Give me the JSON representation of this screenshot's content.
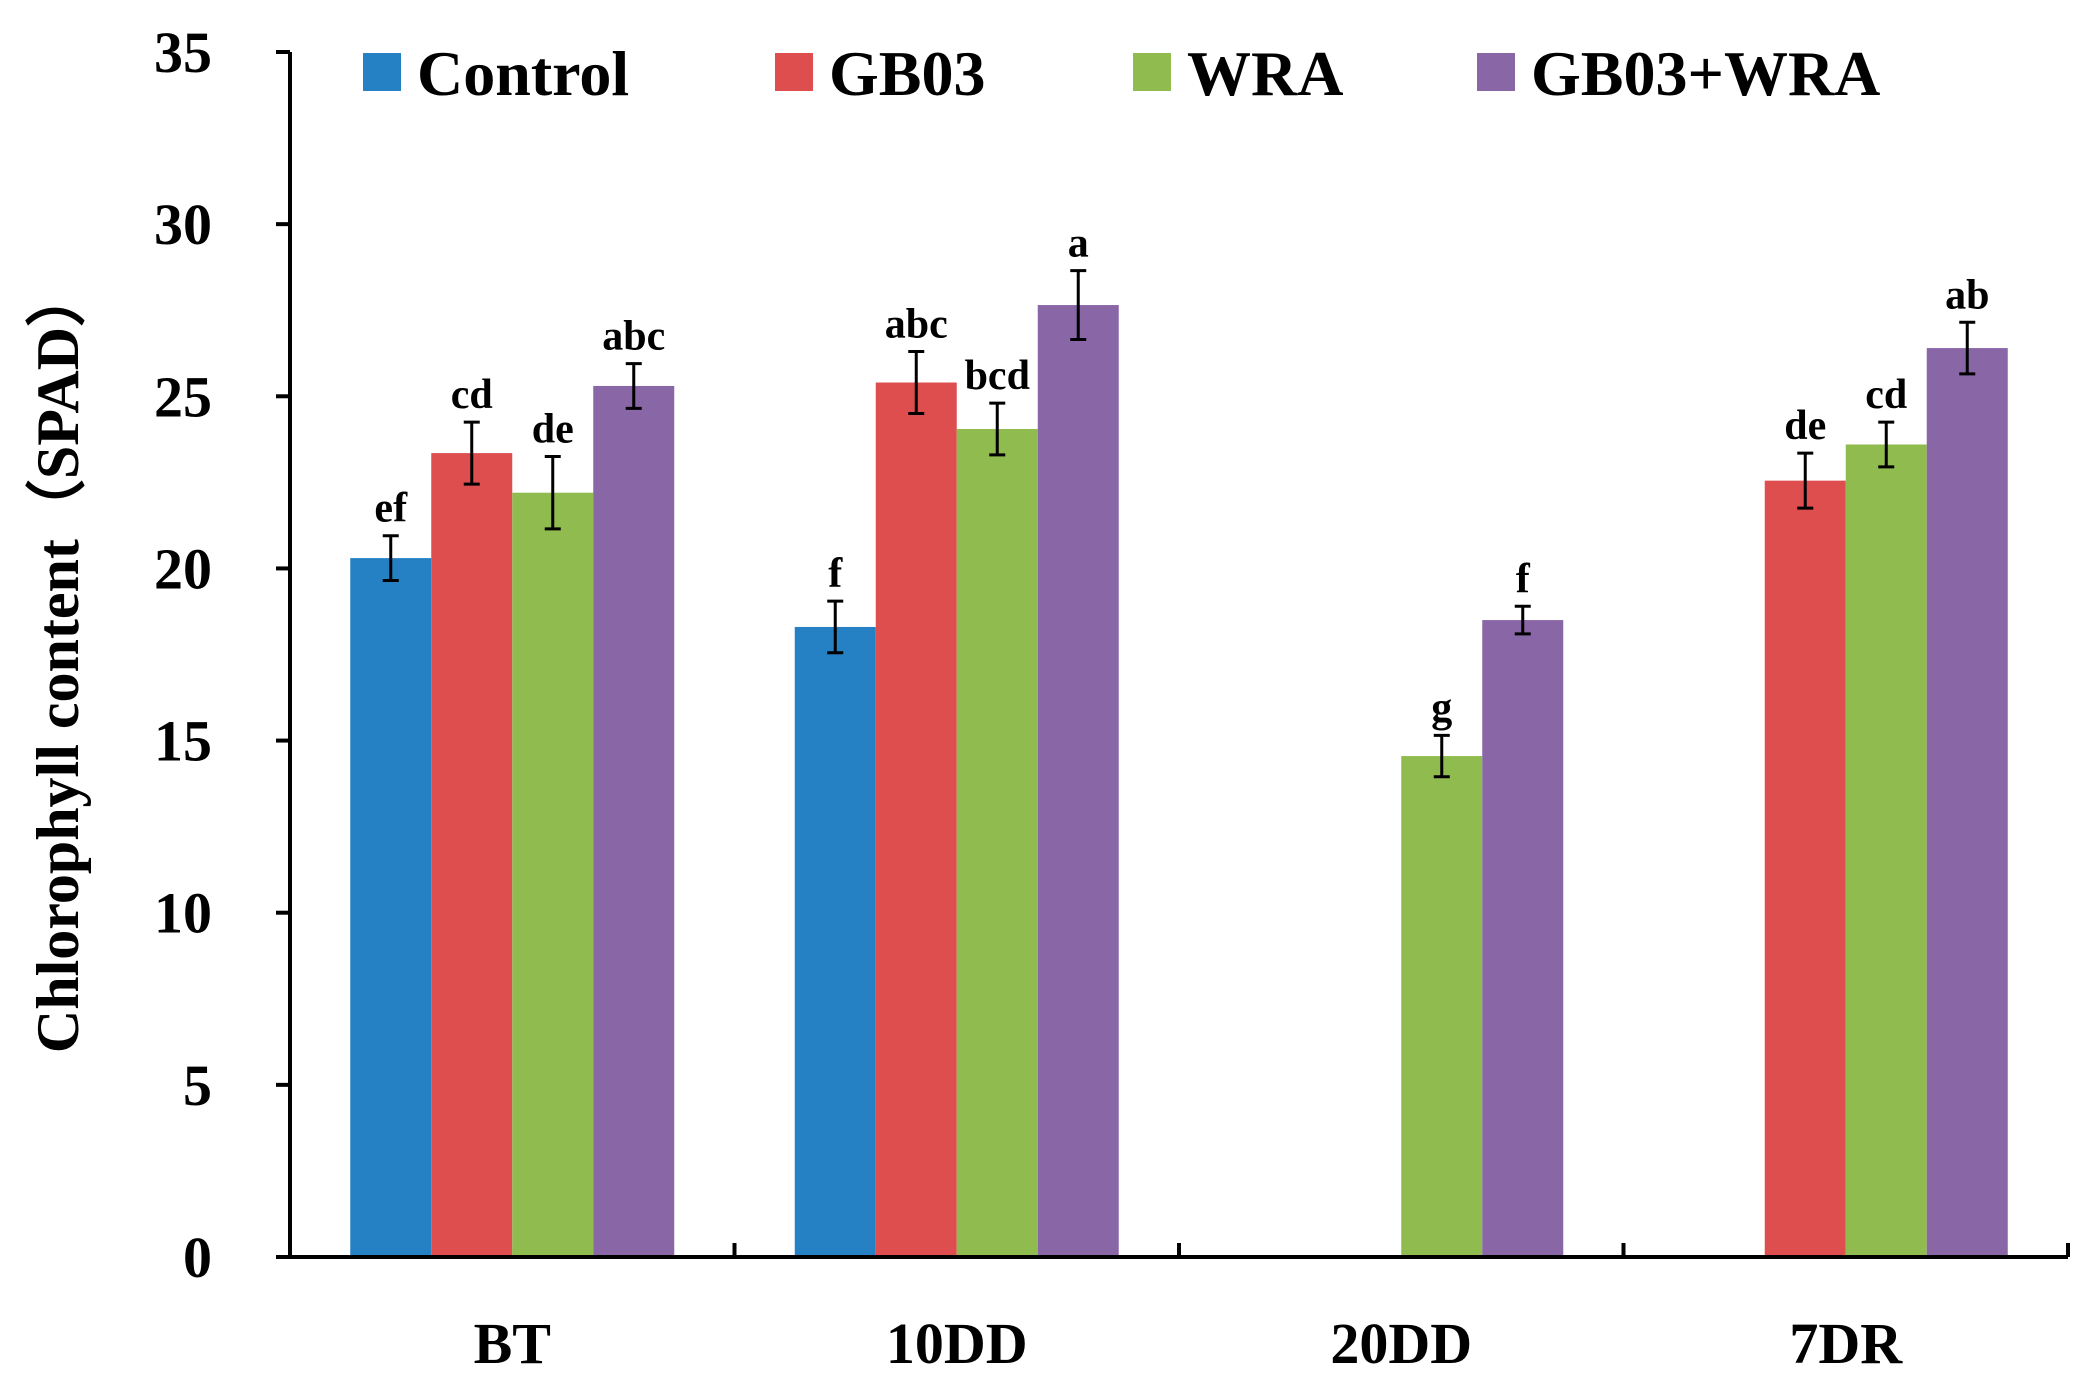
{
  "chart_data": {
    "type": "bar",
    "title": "",
    "xlabel": "",
    "ylabel": "Chlorophyll content（SPAD）",
    "ylim": [
      0,
      35
    ],
    "yticks": [
      0,
      5,
      10,
      15,
      20,
      25,
      30,
      35
    ],
    "ytick_labels": [
      "0",
      "5",
      "10",
      "15",
      "20",
      "25",
      "30",
      "35"
    ],
    "categories": [
      "BT",
      "10DD",
      "20DD",
      "7DR"
    ],
    "legend_position": "top",
    "grid": false,
    "series": [
      {
        "name": "Control",
        "color": "#2581c4",
        "values": [
          20.3,
          18.3,
          null,
          null
        ],
        "errors": [
          0.65,
          0.75,
          null,
          null
        ],
        "labels": [
          "ef",
          "f",
          null,
          null
        ]
      },
      {
        "name": "GB03",
        "color": "#de4e4e",
        "values": [
          23.35,
          25.4,
          null,
          22.55
        ],
        "errors": [
          0.9,
          0.9,
          null,
          0.8
        ],
        "labels": [
          "cd",
          "abc",
          null,
          "de"
        ]
      },
      {
        "name": "WRA",
        "color": "#8fbb4f",
        "values": [
          22.2,
          24.05,
          14.55,
          23.6
        ],
        "errors": [
          1.05,
          0.75,
          0.6,
          0.65
        ],
        "labels": [
          "de",
          "bcd",
          "g",
          "cd"
        ]
      },
      {
        "name": "GB03+WRA",
        "color": "#8966a6",
        "values": [
          25.3,
          27.65,
          18.5,
          26.4
        ],
        "errors": [
          0.65,
          1.0,
          0.4,
          0.75
        ],
        "labels": [
          "abc",
          "a",
          "f",
          "ab"
        ]
      }
    ]
  }
}
